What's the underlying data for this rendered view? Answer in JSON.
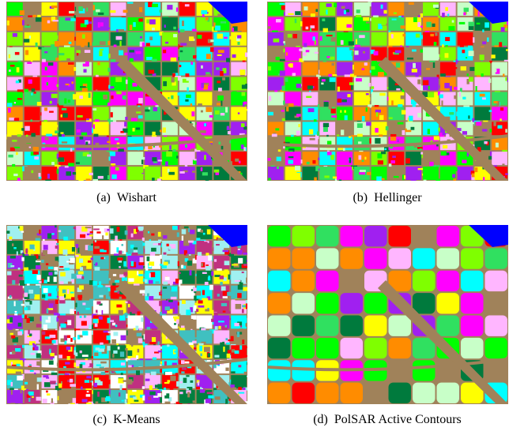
{
  "figures": [
    {
      "label": "(a)",
      "caption": "Wishart"
    },
    {
      "label": "(b)",
      "caption": "Hellinger"
    },
    {
      "label": "(c)",
      "caption": "K-Means"
    },
    {
      "label": "(d)",
      "caption": "PolSAR Active Contours"
    }
  ]
}
